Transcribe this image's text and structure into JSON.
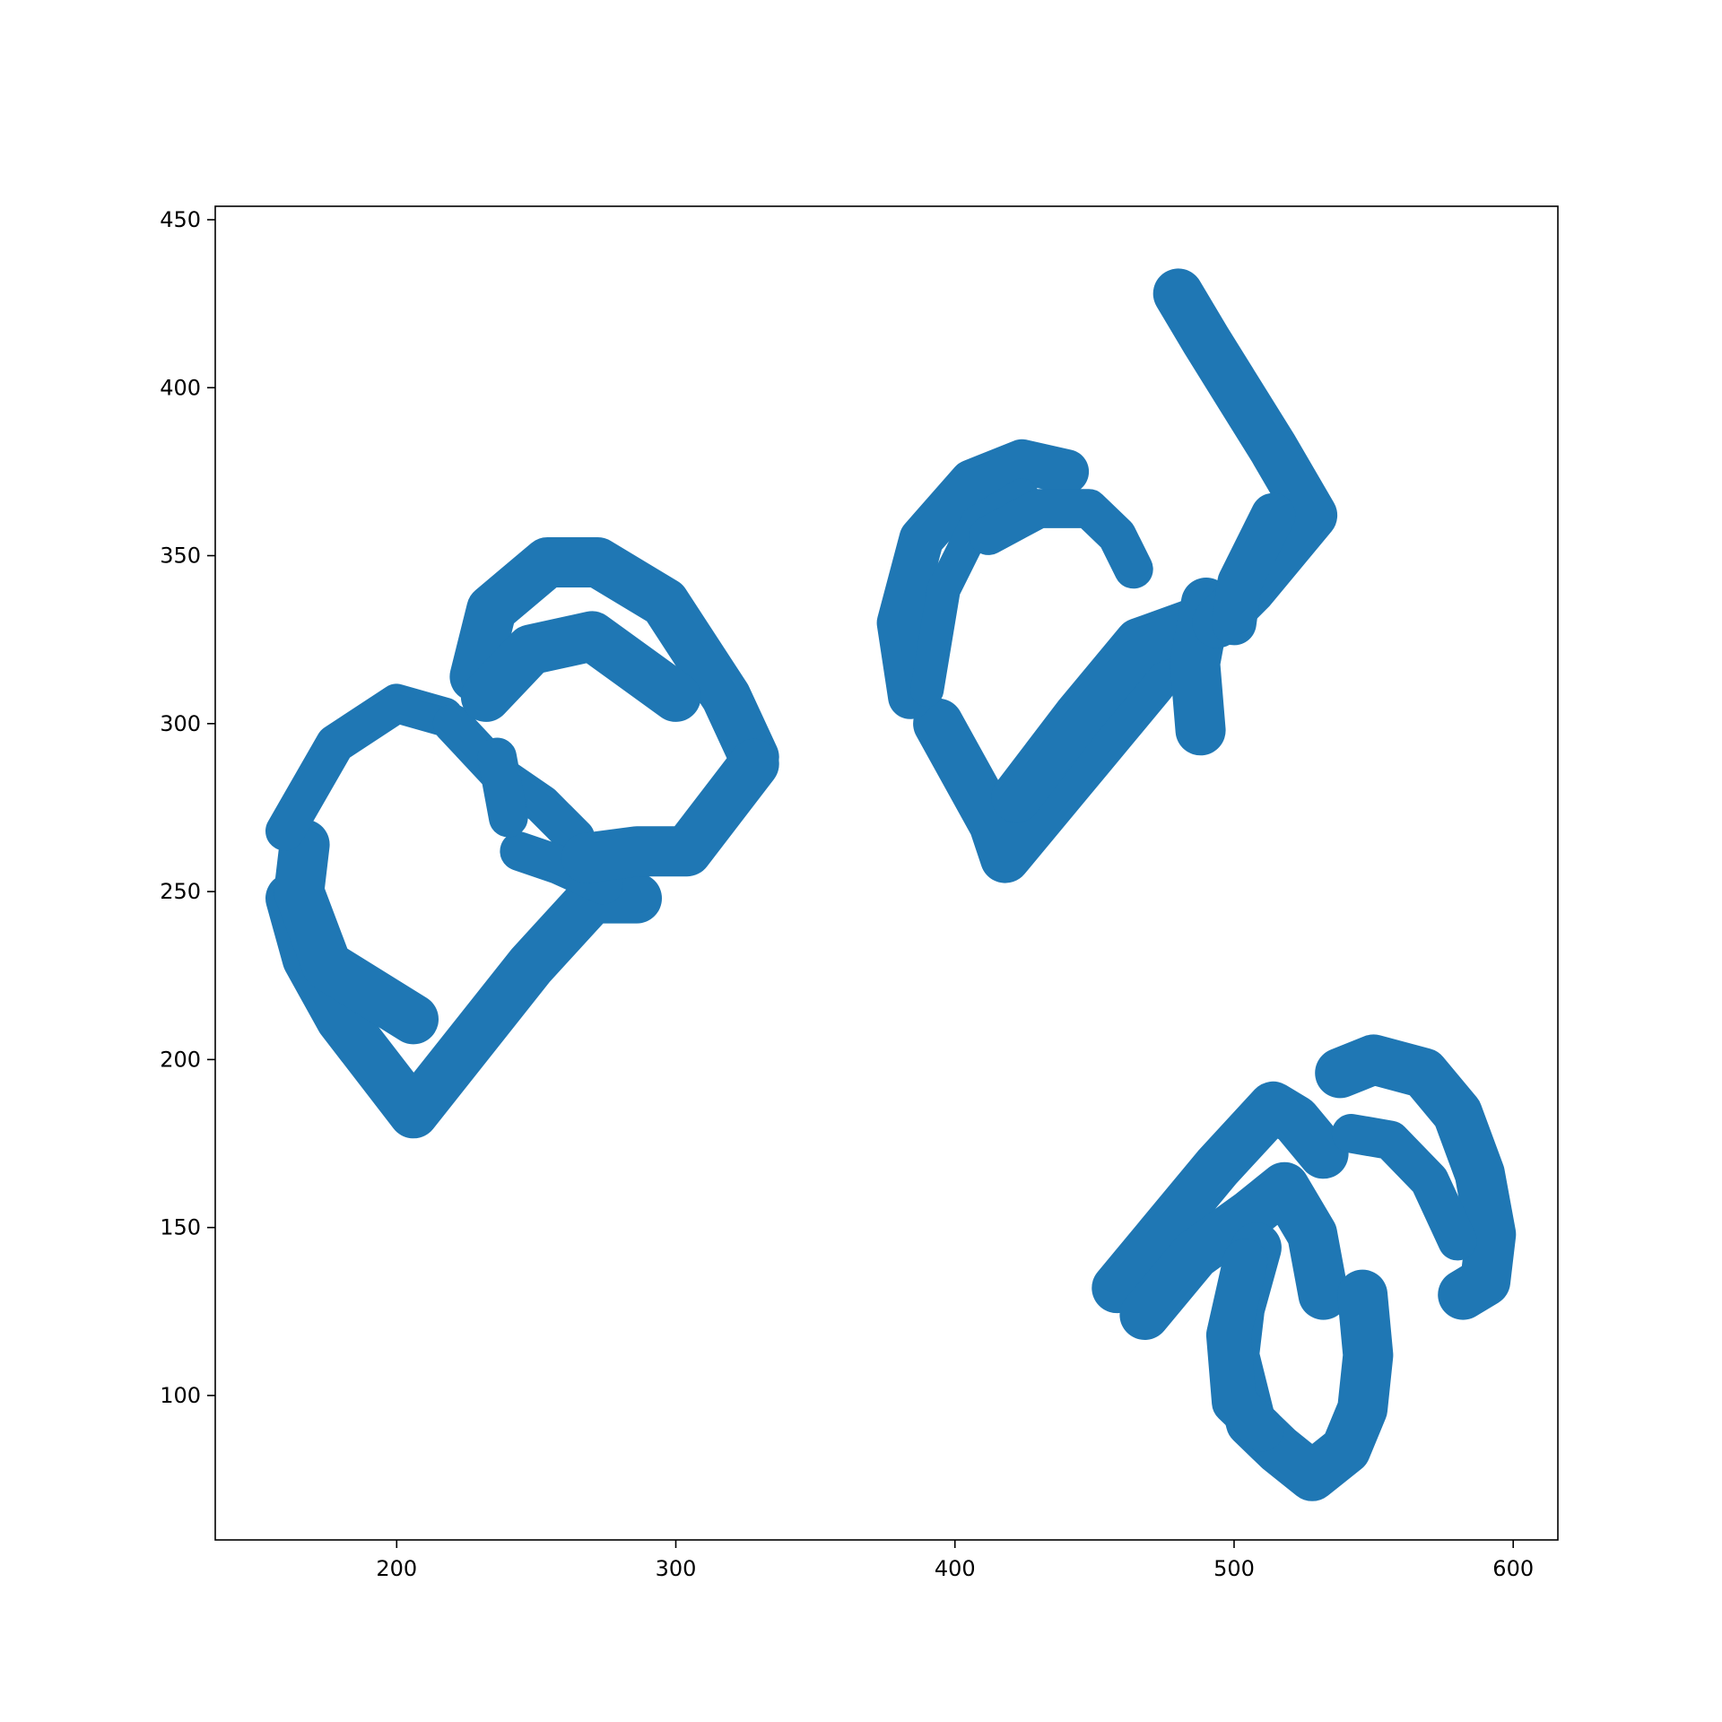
{
  "chart_data": {
    "type": "scatter",
    "title": "",
    "xlabel": "",
    "ylabel": "",
    "xlim": [
      135,
      616
    ],
    "ylim": [
      57,
      454
    ],
    "xticks": [
      200,
      300,
      400,
      500,
      600
    ],
    "yticks": [
      100,
      150,
      200,
      250,
      300,
      350,
      400,
      450
    ],
    "grid": false,
    "legend": "none",
    "color": "#1f77b4",
    "series": [
      {
        "strokes": [
          {
            "w": 18,
            "pts": [
              [
                162,
                248
              ],
              [
                168,
                230
              ],
              [
                180,
                212
              ],
              [
                206,
                184
              ],
              [
                248,
                228
              ],
              [
                270,
                248
              ],
              [
                286,
                248
              ]
            ]
          },
          {
            "w": 18,
            "pts": [
              [
                167,
                264
              ],
              [
                165,
                250
              ],
              [
                175,
                228
              ],
              [
                206,
                212
              ]
            ]
          },
          {
            "w": 14,
            "pts": [
              [
                160,
                268
              ],
              [
                178,
                294
              ],
              [
                200,
                306
              ],
              [
                217,
                302
              ]
            ]
          },
          {
            "w": 14,
            "pts": [
              [
                220,
                300
              ],
              [
                238,
                284
              ],
              [
                252,
                276
              ],
              [
                264,
                266
              ]
            ]
          },
          {
            "w": 14,
            "pts": [
              [
                244,
                262
              ],
              [
                258,
                258
              ],
              [
                274,
                252
              ]
            ]
          },
          {
            "w": 18,
            "pts": [
              [
                228,
                314
              ],
              [
                234,
                334
              ],
              [
                254,
                348
              ],
              [
                272,
                348
              ],
              [
                296,
                336
              ],
              [
                318,
                308
              ],
              [
                328,
                290
              ]
            ]
          },
          {
            "w": 18,
            "pts": [
              [
                232,
                308
              ],
              [
                248,
                322
              ],
              [
                270,
                326
              ],
              [
                300,
                308
              ]
            ]
          },
          {
            "w": 14,
            "pts": [
              [
                236,
                290
              ],
              [
                240,
                272
              ]
            ]
          },
          {
            "w": 18,
            "pts": [
              [
                328,
                288
              ],
              [
                304,
                262
              ],
              [
                286,
                262
              ],
              [
                268,
                260
              ]
            ]
          }
        ]
      },
      {
        "strokes": [
          {
            "w": 18,
            "pts": [
              [
                394,
                300
              ],
              [
                414,
                270
              ],
              [
                418,
                260
              ],
              [
                448,
                290
              ],
              [
                470,
                312
              ],
              [
                490,
                334
              ]
            ]
          },
          {
            "w": 18,
            "pts": [
              [
                422,
                278
              ],
              [
                444,
                302
              ],
              [
                466,
                324
              ],
              [
                486,
                330
              ]
            ]
          },
          {
            "w": 16,
            "pts": [
              [
                384,
                308
              ],
              [
                380,
                330
              ],
              [
                388,
                355
              ],
              [
                406,
                372
              ],
              [
                424,
                378
              ],
              [
                440,
                375
              ]
            ]
          },
          {
            "w": 12,
            "pts": [
              [
                390,
                310
              ],
              [
                396,
                340
              ],
              [
                408,
                360
              ],
              [
                424,
                368
              ]
            ]
          },
          {
            "w": 14,
            "pts": [
              [
                412,
                356
              ],
              [
                430,
                364
              ],
              [
                448,
                364
              ],
              [
                458,
                356
              ],
              [
                464,
                346
              ]
            ]
          },
          {
            "w": 18,
            "pts": [
              [
                488,
                298
              ],
              [
                486,
                318
              ],
              [
                490,
                336
              ]
            ]
          },
          {
            "w": 18,
            "pts": [
              [
                480,
                428
              ],
              [
                490,
                414
              ],
              [
                502,
                398
              ],
              [
                514,
                382
              ],
              [
                528,
                362
              ],
              [
                506,
                340
              ],
              [
                494,
                330
              ]
            ]
          },
          {
            "w": 16,
            "pts": [
              [
                514,
                362
              ],
              [
                502,
                342
              ],
              [
                500,
                330
              ]
            ]
          }
        ]
      },
      {
        "strokes": [
          {
            "w": 18,
            "pts": [
              [
                458,
                132
              ],
              [
                476,
                150
              ],
              [
                494,
                168
              ],
              [
                514,
                186
              ],
              [
                522,
                182
              ],
              [
                532,
                172
              ]
            ]
          },
          {
            "w": 18,
            "pts": [
              [
                468,
                124
              ],
              [
                486,
                142
              ],
              [
                506,
                154
              ],
              [
                518,
                162
              ],
              [
                528,
                148
              ],
              [
                532,
                130
              ]
            ]
          },
          {
            "w": 18,
            "pts": [
              [
                508,
                144
              ],
              [
                502,
                126
              ],
              [
                500,
                112
              ],
              [
                506,
                92
              ],
              [
                516,
                84
              ],
              [
                528,
                76
              ],
              [
                540,
                84
              ],
              [
                546,
                96
              ],
              [
                548,
                112
              ],
              [
                546,
                130
              ]
            ]
          },
          {
            "w": 16,
            "pts": [
              [
                504,
                140
              ],
              [
                498,
                118
              ],
              [
                500,
                98
              ],
              [
                510,
                90
              ]
            ]
          },
          {
            "w": 18,
            "pts": [
              [
                538,
                196
              ],
              [
                550,
                200
              ],
              [
                568,
                196
              ],
              [
                580,
                184
              ],
              [
                588,
                166
              ],
              [
                592,
                148
              ],
              [
                590,
                134
              ],
              [
                582,
                130
              ]
            ]
          },
          {
            "w": 14,
            "pts": [
              [
                542,
                178
              ],
              [
                556,
                176
              ],
              [
                570,
                164
              ],
              [
                580,
                146
              ]
            ]
          }
        ]
      }
    ]
  }
}
